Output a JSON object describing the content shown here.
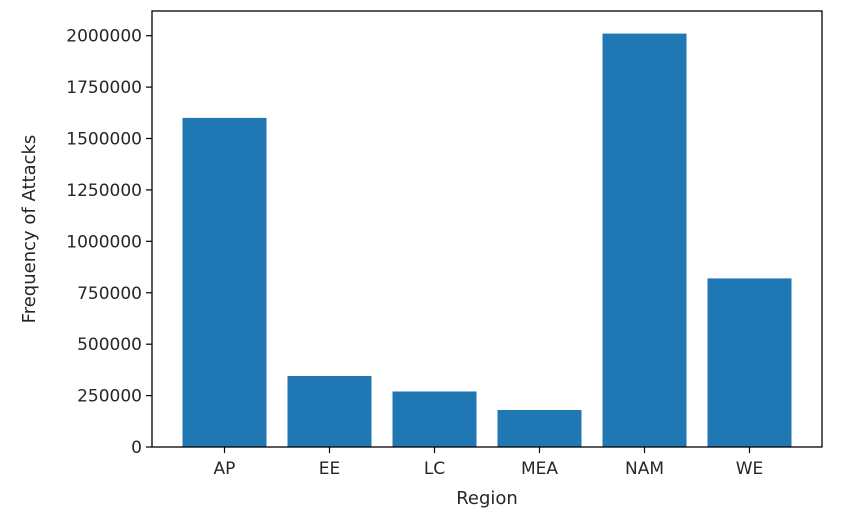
{
  "chart_data": {
    "type": "bar",
    "title": "",
    "xlabel": "Region",
    "ylabel": "Frequency of Attacks",
    "categories": [
      "AP",
      "EE",
      "LC",
      "MEA",
      "NAM",
      "WE"
    ],
    "values": [
      1600000,
      345000,
      270000,
      180000,
      2010000,
      820000
    ],
    "ylim": [
      0,
      2120000
    ],
    "yticks": [
      0,
      250000,
      500000,
      750000,
      1000000,
      1250000,
      1500000,
      1750000,
      2000000
    ],
    "ytick_labels": [
      "0",
      "250000",
      "500000",
      "750000",
      "1000000",
      "1250000",
      "1500000",
      "1750000",
      "2000000"
    ],
    "bar_color": "#1f77b4",
    "grid": false,
    "legend": false
  }
}
